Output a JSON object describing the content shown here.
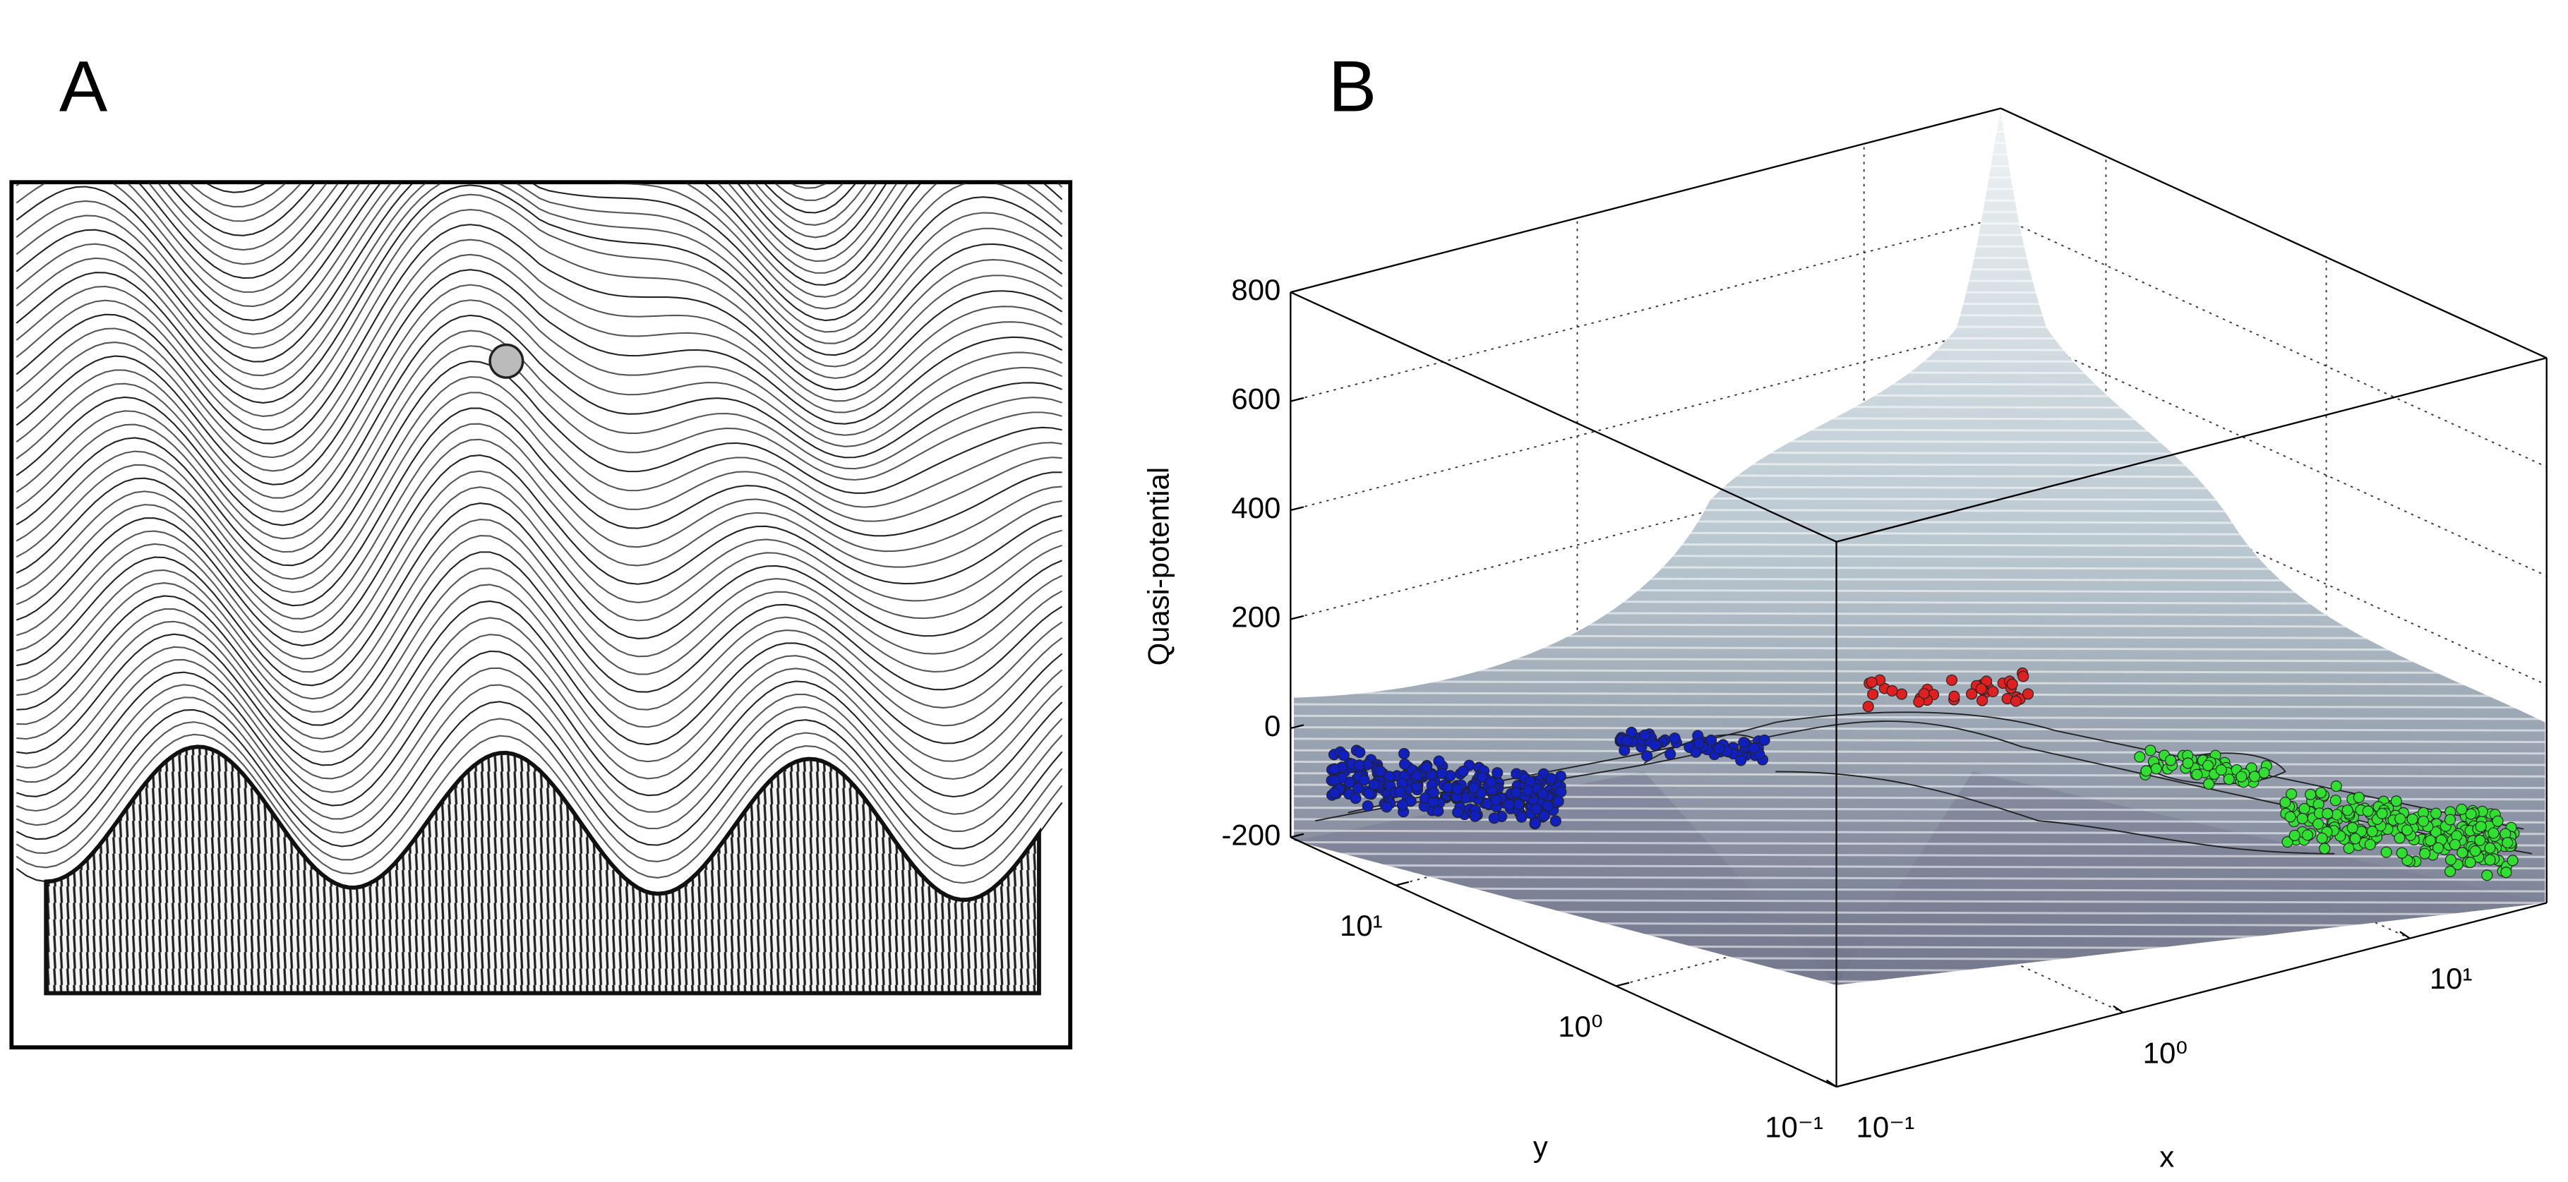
{
  "panel_labels": [
    "A",
    "B"
  ],
  "chart_data": {
    "type": "surface",
    "zlabel": "Quasi-potential",
    "xlabel": "x",
    "ylabel": "y",
    "zlim": [
      -200,
      800
    ],
    "zticks": [
      -200,
      0,
      200,
      400,
      600,
      800
    ],
    "xlim": [
      0.1,
      30
    ],
    "xticks": [
      {
        "value": 0.1,
        "label": "10⁻¹"
      },
      {
        "value": 1,
        "label": "10⁰"
      },
      {
        "value": 10,
        "label": "10¹"
      }
    ],
    "ylim": [
      0.1,
      30
    ],
    "yticks": [
      {
        "value": 0.1,
        "label": "10⁻¹"
      },
      {
        "value": 1,
        "label": "10⁰"
      },
      {
        "value": 10,
        "label": "10¹"
      }
    ],
    "log_scale": true,
    "grid": true,
    "point_colors": [
      "#1020c0",
      "#e02020",
      "#30e030"
    ]
  }
}
